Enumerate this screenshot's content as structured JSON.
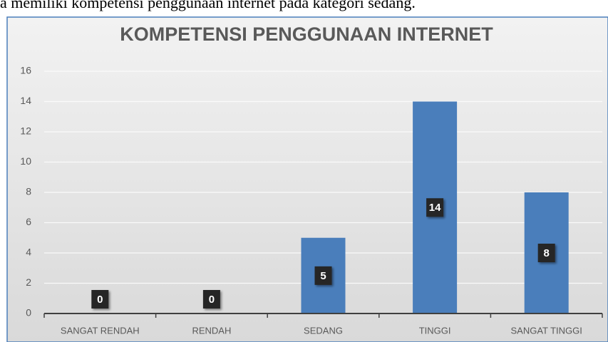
{
  "caption": "a memiliki kompetensi penggunaan internet pada kategori sedang.",
  "chart_data": {
    "type": "bar",
    "title": "KOMPETENSI PENGGUNAAN INTERNET",
    "categories": [
      "SANGAT RENDAH",
      "RENDAH",
      "SEDANG",
      "TINGGI",
      "SANGAT TINGGI"
    ],
    "values": [
      0,
      0,
      5,
      14,
      8
    ],
    "color": "#4a7ebb",
    "ylim": [
      0,
      16
    ],
    "yticks": [
      0,
      2,
      4,
      6,
      8,
      10,
      12,
      14,
      16
    ],
    "grid": true
  }
}
